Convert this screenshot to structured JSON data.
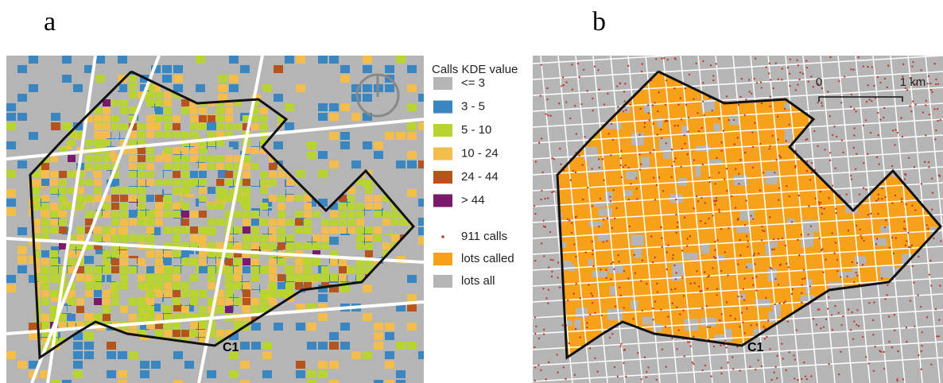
{
  "panels": [
    {
      "label": "a",
      "region_label": "C1"
    },
    {
      "label": "b",
      "region_label": "C1",
      "scale_bar": {
        "start": "0",
        "end": "1 km"
      }
    }
  ],
  "legend": {
    "title": "Calls KDE value",
    "kde_classes": [
      {
        "label": "<= 3",
        "color": "#b5b5b5"
      },
      {
        "label": "3 - 5",
        "color": "#3a86c0"
      },
      {
        "label": "5 - 10",
        "color": "#b8d431"
      },
      {
        "label": "10 - 24",
        "color": "#f2bd4a"
      },
      {
        "label": "24 - 44",
        "color": "#b5541b"
      },
      {
        "label": "> 44",
        "color": "#7b1a6b"
      }
    ],
    "layers": [
      {
        "label": "911 calls",
        "color": "#c0392b",
        "kind": "dot"
      },
      {
        "label": "lots called",
        "color": "#f7a11a",
        "kind": "box"
      },
      {
        "label": "lots all",
        "color": "#b5b5b5",
        "kind": "box"
      }
    ]
  }
}
